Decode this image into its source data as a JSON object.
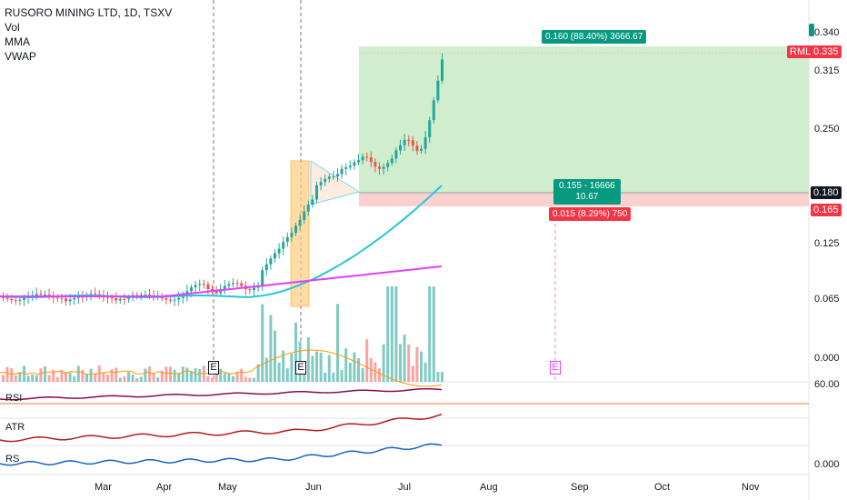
{
  "legend": {
    "title": "RUSORO MINING LTD, 1D, TSXV",
    "items": [
      "Vol",
      "MMA",
      "VWAP"
    ]
  },
  "price_axis": {
    "ticks": [
      "0.340",
      "0.315",
      "0.250",
      "0.125",
      "0.065",
      "0.000"
    ],
    "rml_label": "RML",
    "current_price": "0.335",
    "tag_180": "0.180",
    "tag_165": "0.165",
    "rsi_tick": "60.00",
    "rs_tick": "0.000"
  },
  "position": {
    "target_label": "0.160 (88.40%) 3666.67",
    "entry_line1": "0.155 - 16666",
    "entry_line2": "10.67",
    "stop_label": "0.015 (8.29%) 750"
  },
  "earnings_marker": "E",
  "panes": {
    "rsi": "RSI",
    "atr": "ATR",
    "rs": "RS"
  },
  "months": [
    "Mar",
    "Apr",
    "May",
    "Jun",
    "Jul",
    "Aug",
    "Sep",
    "Oct",
    "Nov"
  ],
  "colors": {
    "up": "#26a69a",
    "down": "#ef5350",
    "ma_cyan": "#26c6da",
    "ma_magenta": "#e040fb",
    "green_tag": "#089981",
    "red_tag": "#f23645",
    "zone_green": "#c8ebc6",
    "zone_red": "#fbd0d0"
  }
}
